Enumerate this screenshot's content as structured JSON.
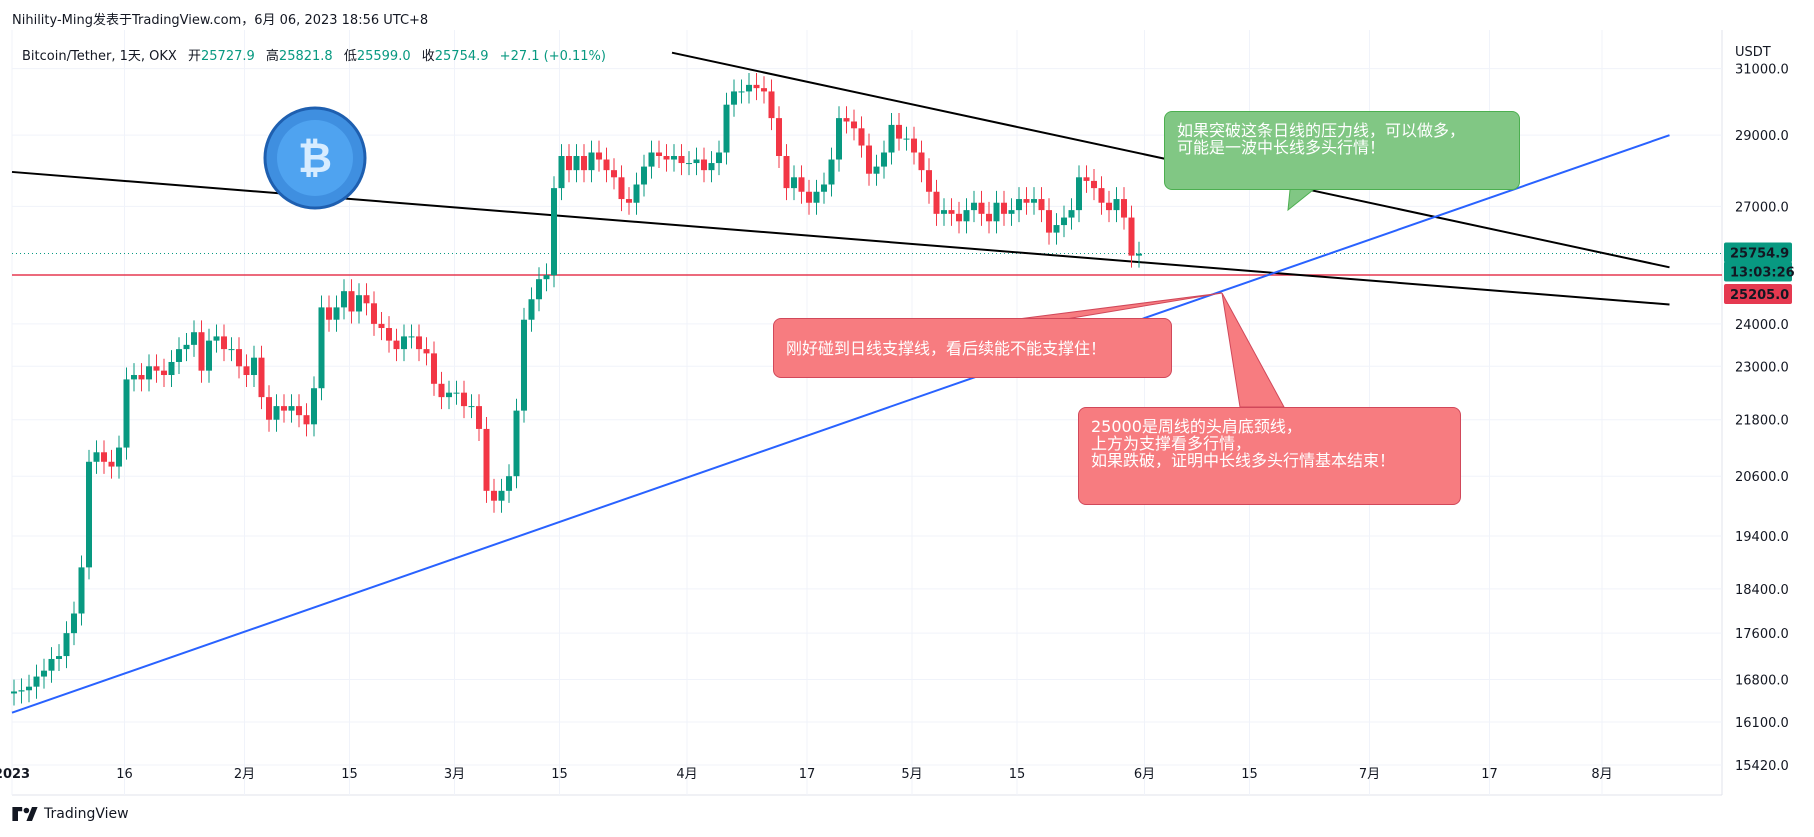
{
  "header": {
    "publisher": "Nihility-Ming发表于TradingView.com，6月 06, 2023 18:56 UTC+8"
  },
  "symbol_bar": {
    "title": "Bitcoin/Tether, 1天, OKX",
    "open_label": "开",
    "open": "25727.9",
    "high_label": "高",
    "high": "25821.8",
    "low_label": "低",
    "low": "25599.0",
    "close_label": "收",
    "close": "25754.9",
    "change": "+27.1 (+0.11%)"
  },
  "price_scale": {
    "currency": "USDT",
    "ticks": [
      "31000.0",
      "29000.0",
      "27000.0",
      "24000.0",
      "23000.0",
      "21800.0",
      "20600.0",
      "19400.0",
      "18400.0",
      "17600.0",
      "16800.0",
      "16100.0",
      "15420.0"
    ],
    "last_price": "25754.9",
    "countdown": "13:03:26",
    "horizontal_level": "25205.0"
  },
  "time_scale": {
    "ticks": [
      "2023",
      "16",
      "2月",
      "15",
      "3月",
      "15",
      "4月",
      "17",
      "5月",
      "15",
      "6月",
      "15",
      "7月",
      "17",
      "8月"
    ]
  },
  "annotations": {
    "green_callout": [
      "如果突破这条日线的压力线，可以做多，",
      "可能是一波中长线多头行情！"
    ],
    "red_callout_1": "刚好碰到日线支撑线，看后续能不能支撑住！",
    "red_callout_2": [
      "25000是周线的头肩底颈线，",
      "上方为支撑看多行情，",
      "如果跌破，证明中长线多头行情基本结束！"
    ]
  },
  "footer": {
    "brand": "TradingView"
  },
  "colors": {
    "up": "#089981",
    "down": "#f23645",
    "level_line": "#e53950",
    "support_line": "#2962ff",
    "trend_line": "#000000",
    "green_callout": "#81c784",
    "red_callout": "#f77c80"
  },
  "chart_data": {
    "type": "candlestick",
    "title": "Bitcoin/Tether, 1天, OKX",
    "ylabel": "USDT",
    "ylim": [
      15420,
      32000
    ],
    "y_scale": "log",
    "x": {
      "start": "2023-01-01",
      "end": "2023-08-17"
    },
    "closes": [
      16600,
      16620,
      16680,
      16850,
      16950,
      17150,
      17200,
      17600,
      17950,
      18800,
      20900,
      21100,
      20900,
      20800,
      21200,
      22700,
      22800,
      22700,
      23000,
      22900,
      22800,
      23100,
      23400,
      23500,
      23800,
      22900,
      23600,
      23700,
      23400,
      23400,
      23000,
      22800,
      23200,
      22300,
      21800,
      22100,
      22000,
      22100,
      21900,
      21700,
      22500,
      24400,
      24100,
      24400,
      24800,
      24300,
      24700,
      24500,
      24000,
      23900,
      23600,
      23400,
      23700,
      23700,
      23400,
      23300,
      22600,
      22300,
      22400,
      22400,
      22100,
      22100,
      21600,
      20300,
      20100,
      20300,
      20600,
      22000,
      24100,
      24600,
      25100,
      25200,
      27500,
      28400,
      28000,
      28400,
      28000,
      28500,
      28300,
      28000,
      27800,
      27200,
      27100,
      27600,
      28100,
      28500,
      28400,
      28300,
      28400,
      28200,
      28200,
      28300,
      28000,
      28200,
      28500,
      29900,
      30300,
      30300,
      30500,
      30400,
      30300,
      29500,
      28400,
      27500,
      27800,
      27400,
      27100,
      27400,
      27600,
      28300,
      29500,
      29400,
      29200,
      28700,
      27900,
      28100,
      28500,
      29300,
      28900,
      28900,
      28500,
      28000,
      27400,
      26800,
      26900,
      26800,
      26600,
      26900,
      27100,
      26800,
      26600,
      27100,
      26800,
      26900,
      27200,
      27100,
      27200,
      26900,
      26300,
      26500,
      26700,
      26900,
      27800,
      27700,
      27500,
      27100,
      26900,
      27200,
      26700,
      25700,
      25750
    ],
    "horizontal_level": 25205.0,
    "trendlines": [
      {
        "name": "upper-resistance",
        "from": [
          "2023-03-30",
          "31500"
        ],
        "to": [
          "2023-08-10",
          "25400"
        ],
        "color": "#000000"
      },
      {
        "name": "middle-support",
        "from": [
          "2023-01-01",
          "27950"
        ],
        "to": [
          "2023-08-10",
          "24470"
        ],
        "color": "#000000"
      },
      {
        "name": "long-term-support",
        "from": [
          "2023-01-01",
          "16250"
        ],
        "to": [
          "2023-08-10",
          "29000"
        ],
        "color": "#2962ff"
      }
    ]
  }
}
